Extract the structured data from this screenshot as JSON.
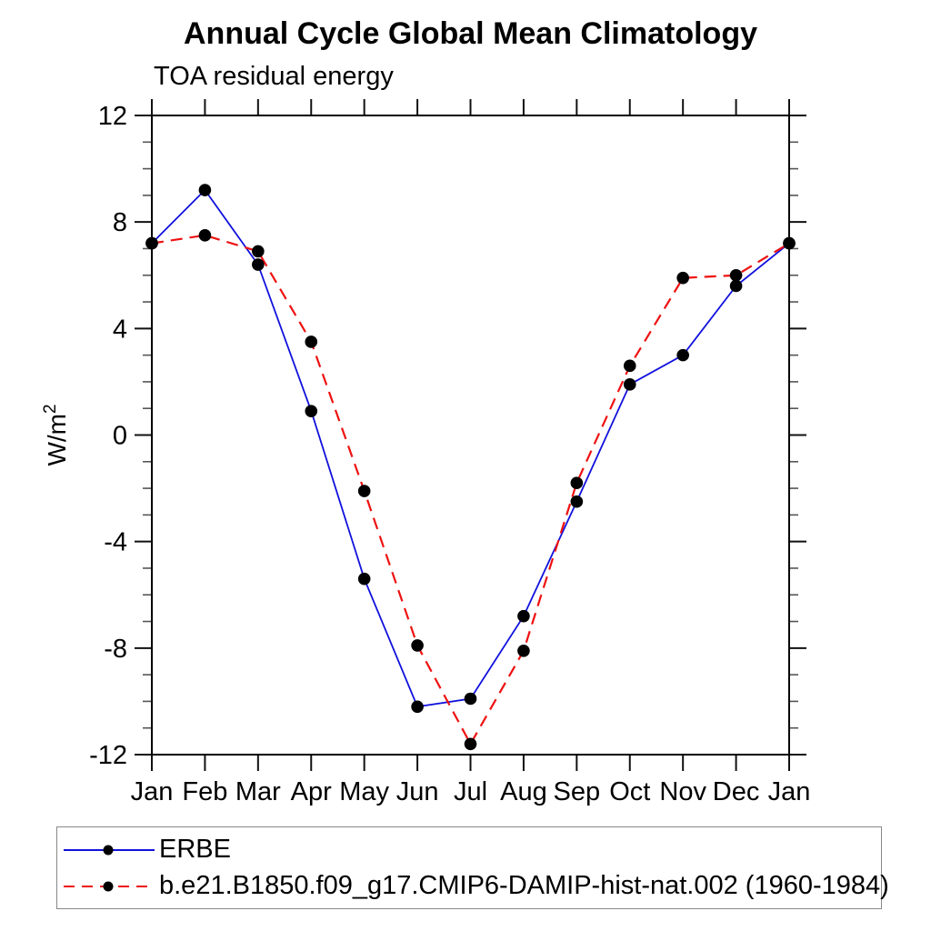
{
  "chart_data": {
    "type": "line",
    "title": "Annual Cycle Global Mean Climatology",
    "subtitle": "TOA residual energy",
    "ylabel": "W/m²",
    "ylabel_base": "W/m",
    "ylabel_exp": "2",
    "xlabel": "",
    "categories": [
      "Jan",
      "Feb",
      "Mar",
      "Apr",
      "May",
      "Jun",
      "Jul",
      "Aug",
      "Sep",
      "Oct",
      "Nov",
      "Dec",
      "Jan"
    ],
    "ylim": [
      -12,
      12
    ],
    "y_major_ticks": [
      12,
      8,
      4,
      0,
      -4,
      -8,
      -12
    ],
    "y_minor_step": 1,
    "grid": false,
    "legend_position": "bottom-left-box",
    "marker": {
      "shape": "circle",
      "color": "#000000"
    },
    "series": [
      {
        "name": "ERBE",
        "color": "#1111dd",
        "style": "solid",
        "values": [
          7.2,
          9.2,
          6.4,
          0.9,
          -5.4,
          -10.2,
          -9.9,
          -6.8,
          -2.5,
          1.9,
          3.0,
          5.6,
          7.2
        ]
      },
      {
        "name": "b.e21.B1850.f09_g17.CMIP6-DAMIP-hist-nat.002 (1960-1984)",
        "color": "#ee1111",
        "style": "dashed",
        "values": [
          7.2,
          7.5,
          6.9,
          3.5,
          -2.1,
          -7.9,
          -11.6,
          -8.1,
          -1.8,
          2.6,
          5.9,
          6.0,
          7.2
        ]
      }
    ]
  }
}
